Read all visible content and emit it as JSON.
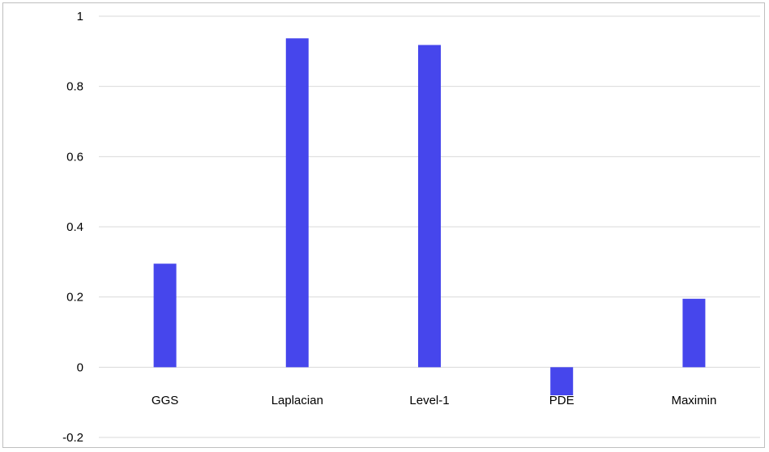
{
  "chart_data": {
    "type": "bar",
    "categories": [
      "GGS",
      "Laplacian",
      "Level-1",
      "PDE",
      "Maximin"
    ],
    "values": [
      0.295,
      0.937,
      0.918,
      -0.08,
      0.195
    ],
    "title": "",
    "xlabel": "",
    "ylabel": "",
    "ylim": [
      -0.2,
      1.0
    ],
    "yticks": [
      "-0.2",
      "0",
      "0.2",
      "0.4",
      "0.6",
      "0.8",
      "1"
    ],
    "grid": true,
    "legend": "none",
    "bar_color": "#4646ec",
    "grid_color": "#d9d9d9"
  }
}
